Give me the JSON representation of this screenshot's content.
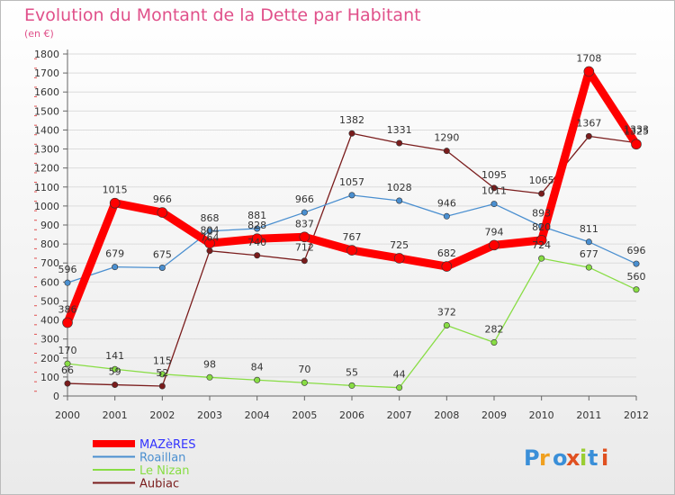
{
  "chart_data": {
    "type": "line",
    "title": "Evolution du Montant de la Dette par Habitant",
    "subtitle": "(en €)",
    "x": [
      "2000",
      "2001",
      "2002",
      "2003",
      "2004",
      "2005",
      "2006",
      "2007",
      "2008",
      "2009",
      "2010",
      "2011",
      "2012"
    ],
    "yticks": [
      0,
      100,
      200,
      300,
      400,
      500,
      600,
      700,
      800,
      900,
      1000,
      1100,
      1200,
      1300,
      1400,
      1500,
      1600,
      1700,
      1800
    ],
    "ylim": [
      0,
      1800
    ],
    "grid": "horizontal",
    "legend_position": "bottom-left",
    "series": [
      {
        "name": "MAZèRES",
        "color": "#ff0000",
        "legend_color": "#3333ff",
        "values": [
          386,
          1015,
          966,
          804,
          828,
          837,
          767,
          725,
          682,
          794,
          820,
          1708,
          1325
        ]
      },
      {
        "name": "Roaillan",
        "color": "#4a8fd0",
        "legend_color": "#4a8fd0",
        "values": [
          596,
          679,
          675,
          868,
          881,
          966,
          1057,
          1028,
          946,
          1011,
          893,
          811,
          696
        ]
      },
      {
        "name": "Le Nizan",
        "color": "#88dd44",
        "legend_color": "#88dd44",
        "values": [
          170,
          141,
          115,
          98,
          84,
          70,
          55,
          44,
          372,
          282,
          724,
          677,
          560
        ]
      },
      {
        "name": "Aubiac",
        "color": "#7a1c1c",
        "legend_color": "#7a1c1c",
        "values": [
          66,
          59,
          52,
          764,
          740,
          712,
          1382,
          1331,
          1290,
          1095,
          1065,
          1367,
          1333
        ]
      }
    ]
  },
  "logo_text": "Proxiti"
}
